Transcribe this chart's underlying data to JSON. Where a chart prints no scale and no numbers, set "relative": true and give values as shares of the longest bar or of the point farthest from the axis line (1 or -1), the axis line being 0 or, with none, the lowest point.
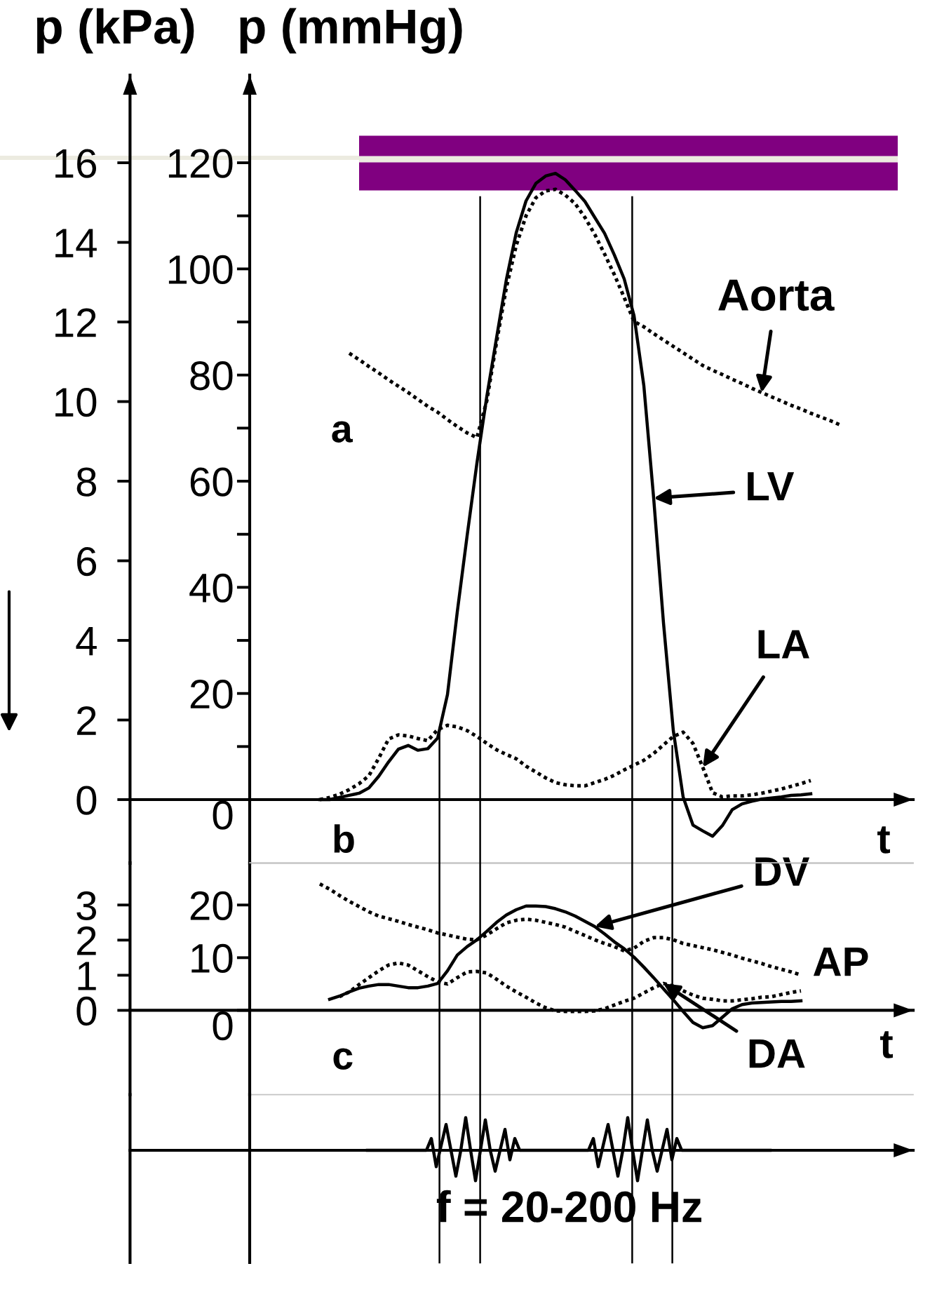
{
  "chart_data": [
    {
      "type": "line",
      "ylabel": "p (mmHg)",
      "y2label": "p (kPa)",
      "xlabel": "t",
      "annotations": [
        "a"
      ],
      "categories": [
        null,
        null,
        null,
        null,
        null,
        null,
        null,
        null,
        null,
        null,
        null,
        null,
        null,
        null,
        null,
        null,
        null,
        null,
        null,
        null,
        null,
        null,
        null,
        null,
        null,
        null,
        null,
        null,
        null,
        null,
        null,
        null,
        null,
        null,
        null,
        null,
        null,
        null,
        null,
        null,
        null,
        null,
        null,
        null,
        null,
        null,
        null,
        null,
        null,
        null,
        null,
        null,
        null,
        null,
        null,
        null
      ],
      "ylim": [
        -12,
        136.5
      ],
      "yticks": [
        0,
        20,
        40,
        60,
        80,
        100,
        120
      ],
      "y2lim": [
        -1.6,
        18.2
      ],
      "y2ticks": [
        0,
        2,
        4,
        6,
        8,
        10,
        12,
        14,
        16
      ],
      "series": [
        {
          "name": "Aorta",
          "color": "#000000",
          "line_style": "dotted",
          "values": [
            null,
            null,
            null,
            84.1,
            82.9,
            81.6,
            80.4,
            79.1,
            77.9,
            76.7,
            75.4,
            74.1,
            73,
            71.6,
            70.3,
            69.1,
            68.2,
            75.1,
            86.2,
            96.5,
            104.4,
            110,
            113.4,
            114.7,
            115,
            113.9,
            112.3,
            109.7,
            106.5,
            102.8,
            98.9,
            94.6,
            90.1,
            89.1,
            87.8,
            86.6,
            85.4,
            84.2,
            83,
            81.8,
            80.9,
            80.1,
            79.2,
            78.4,
            77.5,
            76.7,
            75.9,
            75.1,
            74.3,
            73.6,
            72.8,
            72.1,
            71.4,
            70.6,
            null,
            null
          ]
        },
        {
          "name": "LV",
          "color": "#000000",
          "line_style": "solid",
          "values": [
            0,
            0,
            0.4,
            0.8,
            1.2,
            2.2,
            4.4,
            7.1,
            9.5,
            10.2,
            9.3,
            9.6,
            11.6,
            19.8,
            35.4,
            49.7,
            63.4,
            75.9,
            87,
            98,
            106.8,
            112.8,
            116.1,
            117.5,
            118,
            116.8,
            114.8,
            112.7,
            109.7,
            106.7,
            102.6,
            98.1,
            91.2,
            78,
            56.8,
            33.3,
            13,
            0.5,
            -4.8,
            -5.9,
            -6.9,
            -4.9,
            -1.9,
            -0.8,
            -0.3,
            0.1,
            0.3,
            0.5,
            0.8,
            0.9,
            1.1,
            null,
            null,
            null,
            null,
            null
          ]
        },
        {
          "name": "LA",
          "color": "#000000",
          "line_style": "dotted",
          "values": [
            0,
            0.4,
            1,
            1.9,
            3,
            4.5,
            7.8,
            11.4,
            12.2,
            12,
            11.5,
            11.1,
            13.2,
            14,
            13.7,
            13,
            11.9,
            10.6,
            9.4,
            8.5,
            7.7,
            6.3,
            5.2,
            4.1,
            3.2,
            2.8,
            2.6,
            2.6,
            3.2,
            3.8,
            4.6,
            5.6,
            6.5,
            7.4,
            8.7,
            10.3,
            11.9,
            12.7,
            10.6,
            6.1,
            1.3,
            0.5,
            0.7,
            0.7,
            0.9,
            1.2,
            1.6,
            2,
            2.5,
            3,
            3.6,
            null,
            null,
            null,
            null,
            null
          ]
        }
      ]
    },
    {
      "type": "line",
      "xlabel": "t",
      "annotations": [
        "b"
      ],
      "categories": [
        null,
        null,
        null,
        null,
        null,
        null,
        null,
        null,
        null,
        null,
        null,
        null,
        null,
        null,
        null,
        null,
        null,
        null,
        null,
        null,
        null,
        null,
        null,
        null,
        null,
        null,
        null,
        null,
        null,
        null,
        null,
        null,
        null,
        null,
        null,
        null,
        null,
        null,
        null,
        null,
        null,
        null,
        null,
        null,
        null,
        null,
        null,
        null,
        null,
        null,
        null,
        null,
        null,
        null,
        null,
        null
      ],
      "ylim": [
        -16,
        28
      ],
      "yticks": [
        0,
        10,
        20
      ],
      "y2lim": [
        -2.4,
        4.2
      ],
      "y2ticks": [
        0,
        1,
        2,
        3
      ],
      "series": [
        {
          "name": "DV",
          "color": "#000000",
          "line_style": "solid",
          "values": [
            null,
            2.1,
            2.7,
            3.5,
            4.2,
            4.6,
            4.9,
            4.9,
            4.6,
            4.3,
            4.3,
            4.6,
            5.1,
            7.5,
            10.5,
            12.1,
            13.4,
            15,
            16.7,
            18.1,
            19.1,
            19.8,
            19.8,
            19.7,
            19.3,
            18.7,
            17.9,
            16.9,
            15.9,
            14.5,
            13,
            11.7,
            10.1,
            8.2,
            6.2,
            4.1,
            2,
            -0.2,
            -2.3,
            -3.3,
            -2.9,
            -1.3,
            0.3,
            1.1,
            1.4,
            1.5,
            1.6,
            1.7,
            1.7,
            1.8,
            null,
            null,
            null,
            null,
            null,
            null
          ]
        },
        {
          "name": "AP",
          "color": "#000000",
          "line_style": "dotted",
          "values": [
            24,
            23,
            21.8,
            20.7,
            19.7,
            18.7,
            17.9,
            17.4,
            16.9,
            16.3,
            15.8,
            15.3,
            14.7,
            14.3,
            13.9,
            13.5,
            13.4,
            14.3,
            15.5,
            16.6,
            17.1,
            17.3,
            17.1,
            16.7,
            16.3,
            15.8,
            15,
            14.2,
            13.4,
            12.7,
            12.1,
            11.3,
            11.8,
            13.1,
            13.8,
            13.8,
            13.4,
            12.7,
            12.3,
            11.9,
            11.5,
            11,
            10.5,
            9.9,
            9.4,
            8.9,
            8.3,
            7.8,
            7.3,
            6.7,
            null,
            null,
            null,
            null,
            null,
            null
          ]
        },
        {
          "name": "DA",
          "color": "#000000",
          "line_style": "dotted",
          "values": [
            null,
            null,
            2.6,
            3.5,
            4.9,
            6.2,
            7.5,
            8.6,
            9,
            8.6,
            7.5,
            6.4,
            5.4,
            5,
            6.2,
            7.3,
            7.4,
            7.1,
            5.9,
            4.6,
            3.5,
            2.5,
            1.4,
            0.5,
            -0.1,
            -0.2,
            -0.2,
            -0.2,
            -0.1,
            0.3,
            1,
            1.7,
            2.3,
            3.3,
            4.3,
            5.1,
            4.6,
            3.7,
            2.9,
            2.3,
            2.1,
            1.8,
            1.8,
            2,
            2.2,
            2.5,
            2.6,
            3,
            3.4,
            3.7,
            null,
            null,
            null,
            null,
            null,
            null
          ]
        }
      ]
    },
    {
      "type": "line",
      "relative": true,
      "annotations": [
        "c",
        "f = 20-200 Hz"
      ],
      "categories": [
        null,
        null,
        null,
        null,
        null,
        null,
        null,
        null,
        null,
        null,
        null,
        null,
        null,
        null,
        null,
        null,
        null,
        null,
        null,
        null,
        null,
        null,
        null,
        null,
        null,
        null,
        null,
        null,
        null,
        null,
        null,
        null,
        null,
        null,
        null,
        null,
        null,
        null,
        null,
        null,
        null,
        null,
        null,
        null,
        null,
        null,
        null,
        null,
        null,
        null,
        null,
        null,
        null,
        null,
        null,
        null,
        null,
        null,
        null,
        null,
        null,
        null,
        null,
        null,
        null,
        null,
        null,
        null,
        null,
        null,
        null,
        null,
        null,
        null,
        null,
        null,
        null,
        null,
        null,
        null,
        null,
        null,
        null
      ],
      "series": [
        {
          "color": "#000000",
          "line_style": "solid",
          "values": [
            0,
            0,
            0,
            0,
            0,
            0,
            0,
            0,
            0,
            0,
            0,
            0,
            0,
            0.36,
            -0.5,
            0.15,
            0.79,
            0,
            -0.79,
            0,
            1,
            0,
            -0.93,
            0,
            0.93,
            0,
            -0.64,
            0,
            0.64,
            -0.29,
            0.36,
            0,
            0,
            0,
            0,
            0,
            0,
            0,
            0,
            0,
            0,
            0,
            0,
            0,
            0,
            0,
            0.36,
            -0.5,
            0.15,
            0.79,
            0,
            -0.79,
            0,
            1,
            0,
            -0.93,
            0,
            0.93,
            0,
            -0.64,
            0,
            0.64,
            -0.29,
            0.36,
            0,
            0,
            0,
            0,
            0,
            0,
            0,
            0,
            0,
            0,
            0,
            0,
            0,
            0,
            0,
            0,
            0,
            0,
            0
          ]
        }
      ]
    }
  ]
}
